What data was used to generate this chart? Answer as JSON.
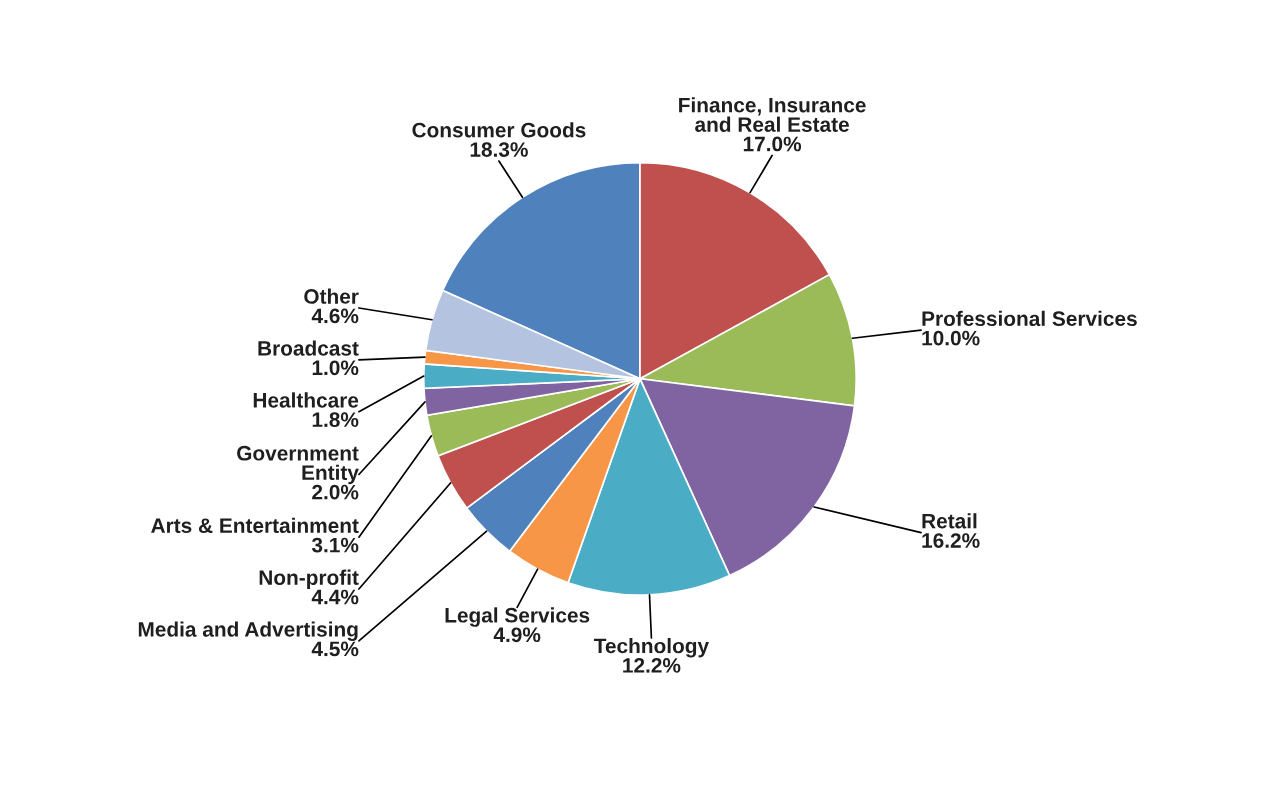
{
  "chart_data": {
    "type": "pie",
    "categories": [
      "Consumer Goods",
      "Finance, Insurance\nand Real Estate",
      "Professional Services",
      "Retail",
      "Technology",
      "Legal Services",
      "Media and Advertising",
      "Non-profit",
      "Arts & Entertainment",
      "Government\nEntity",
      "Healthcare",
      "Broadcast",
      "Other"
    ],
    "values": [
      18.3,
      17.0,
      10.0,
      16.2,
      12.2,
      4.9,
      4.5,
      4.4,
      3.1,
      2.0,
      1.8,
      1.0,
      4.6
    ],
    "value_labels": [
      "18.3%",
      "17.0%",
      "10.0%",
      "16.2%",
      "12.2%",
      "4.9%",
      "4.5%",
      "4.4%",
      "3.1%",
      "2.0%",
      "1.8%",
      "1.0%",
      "4.6%"
    ],
    "colors": [
      "#4f81bd",
      "#c0504d",
      "#9bbb59",
      "#8064a2",
      "#4bacc6",
      "#f79646",
      "#4f81bd",
      "#c0504d",
      "#9bbb59",
      "#8064a2",
      "#4bacc6",
      "#f79646",
      "#b4c3e0"
    ]
  }
}
